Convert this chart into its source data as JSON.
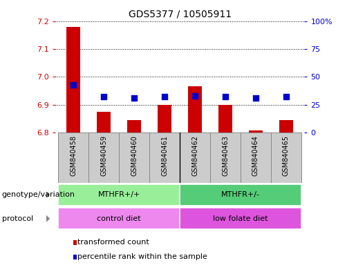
{
  "title": "GDS5377 / 10505911",
  "samples": [
    "GSM840458",
    "GSM840459",
    "GSM840460",
    "GSM840461",
    "GSM840462",
    "GSM840463",
    "GSM840464",
    "GSM840465"
  ],
  "transformed_count": [
    7.18,
    6.875,
    6.845,
    6.9,
    6.965,
    6.9,
    6.808,
    6.845
  ],
  "percentile_rank": [
    43,
    32,
    31,
    32,
    33,
    32,
    31,
    32
  ],
  "ylim_left": [
    6.8,
    7.2
  ],
  "ylim_right": [
    0,
    100
  ],
  "yticks_left": [
    6.8,
    6.9,
    7.0,
    7.1,
    7.2
  ],
  "yticks_right": [
    0,
    25,
    50,
    75,
    100
  ],
  "bar_color": "#cc0000",
  "dot_color": "#0000cc",
  "bar_width": 0.45,
  "baseline": 6.8,
  "genotype_groups": [
    {
      "label": "MTHFR+/+",
      "start": 0,
      "end": 4,
      "color": "#99ee99"
    },
    {
      "label": "MTHFR+/-",
      "start": 4,
      "end": 8,
      "color": "#55cc77"
    }
  ],
  "protocol_groups": [
    {
      "label": "control diet",
      "start": 0,
      "end": 4,
      "color": "#ee88ee"
    },
    {
      "label": "low folate diet",
      "start": 4,
      "end": 8,
      "color": "#dd55dd"
    }
  ],
  "legend_items": [
    {
      "label": "transformed count",
      "color": "#cc0000"
    },
    {
      "label": "percentile rank within the sample",
      "color": "#0000cc"
    }
  ],
  "genotype_label": "genotype/variation",
  "protocol_label": "protocol",
  "left_axis_color": "#cc0000",
  "right_axis_color": "#0000cc",
  "background_color": "#ffffff",
  "plot_bg_color": "#ffffff",
  "xtick_bg_color": "#cccccc",
  "xtick_border_color": "#888888"
}
